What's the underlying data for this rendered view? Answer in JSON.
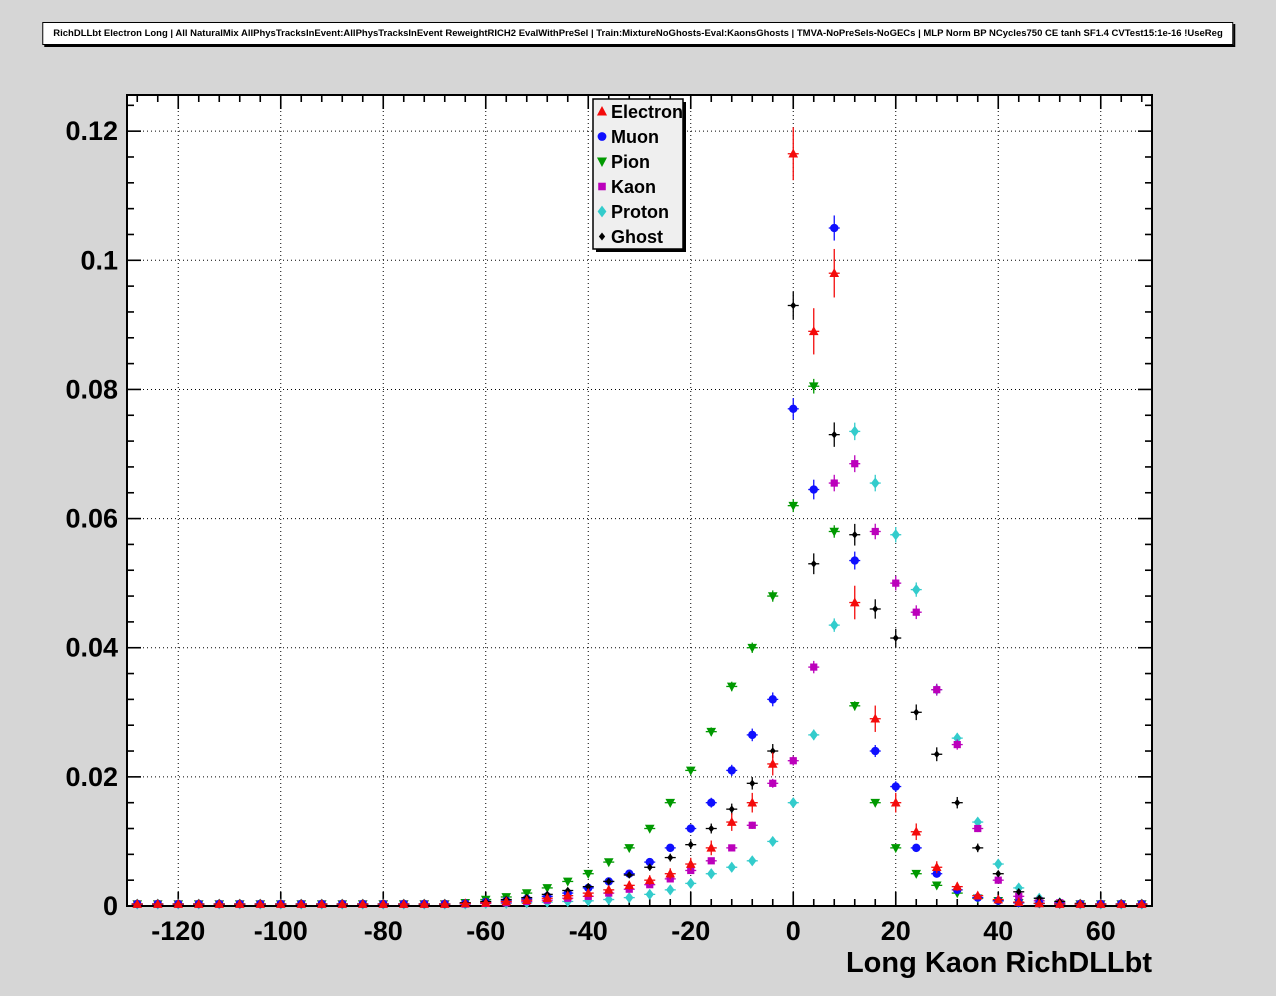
{
  "window": {
    "canvas_bg": "#d6d6d6",
    "frame_bg": "#ffffff",
    "legend_bg": "#efefef",
    "axis_color": "#000000"
  },
  "title": {
    "text": "RichDLLbt Electron Long | All NaturalMix AllPhysTracksInEvent:AllPhysTracksInEvent ReweightRICH2 EvalWithPreSel | Train:MixtureNoGhosts-Eval:KaonsGhosts | TMVA-NoPreSels-NoGECs | MLP Norm BP NCycles750 CE tanh SF1.4 CVTest15:1e-16 !UseReg"
  },
  "chart_data": {
    "type": "scatter",
    "title": "RichDLLbt Electron Long | All NaturalMix AllPhysTracksInEvent:AllPhysTracksInEvent ReweightRICH2 EvalWithPreSel | Train:MixtureNoGhosts-Eval:KaonsGhosts | TMVA-NoPreSels-NoGECs | MLP Norm BP NCycles750 CE tanh SF1.4 CVTest15:1e-16 !UseReg",
    "xlabel": "Long Kaon RichDLLbt",
    "ylabel": "",
    "xlim": [
      -130,
      70
    ],
    "ylim": [
      0,
      0.1256
    ],
    "grid": "dotted",
    "legend_position": "top-center",
    "x_ticks": [
      -120,
      -100,
      -80,
      -60,
      -40,
      -20,
      0,
      20,
      40,
      60
    ],
    "x_tick_labels": [
      "-120",
      "-100",
      "-80",
      "-60",
      "-40",
      "-20",
      "0",
      "20",
      "40",
      "60"
    ],
    "y_ticks": [
      0,
      0.02,
      0.04,
      0.06,
      0.08,
      0.1,
      0.12
    ],
    "y_tick_labels": [
      "0",
      "0.02",
      "0.04",
      "0.06",
      "0.08",
      "0.1",
      "0.12"
    ],
    "x": [
      -128,
      -124,
      -120,
      -116,
      -112,
      -108,
      -104,
      -100,
      -96,
      -92,
      -88,
      -84,
      -80,
      -76,
      -72,
      -68,
      -64,
      -60,
      -56,
      -52,
      -48,
      -44,
      -40,
      -36,
      -32,
      -28,
      -24,
      -20,
      -16,
      -12,
      -8,
      -4,
      0,
      4,
      8,
      12,
      16,
      20,
      24,
      28,
      32,
      36,
      40,
      44,
      48,
      52,
      56,
      60,
      64,
      68
    ],
    "series": [
      {
        "name": "Electron",
        "color": "#f40b0b",
        "marker": "triangle-up",
        "err_scale": 0.012,
        "values": [
          0.0003,
          0.0003,
          0.0003,
          0.0003,
          0.0003,
          0.0003,
          0.0003,
          0.0003,
          0.0003,
          0.0003,
          0.0003,
          0.0003,
          0.0003,
          0.0003,
          0.0003,
          0.0003,
          0.0004,
          0.0005,
          0.0007,
          0.0009,
          0.0012,
          0.0016,
          0.002,
          0.0025,
          0.0032,
          0.004,
          0.005,
          0.0065,
          0.009,
          0.013,
          0.016,
          0.022,
          0.1165,
          0.089,
          0.098,
          0.047,
          0.029,
          0.016,
          0.0115,
          0.006,
          0.003,
          0.0016,
          0.001,
          0.0006,
          0.0004,
          0.0003,
          0.0003,
          0.0003,
          0.0003,
          0.0003
        ]
      },
      {
        "name": "Muon",
        "color": "#0f0fff",
        "marker": "circle",
        "err_scale": 0.006,
        "values": [
          0.0003,
          0.0003,
          0.0003,
          0.0003,
          0.0003,
          0.0003,
          0.0003,
          0.0003,
          0.0003,
          0.0003,
          0.0003,
          0.0003,
          0.0003,
          0.0003,
          0.0003,
          0.0003,
          0.0004,
          0.0006,
          0.0008,
          0.0011,
          0.0015,
          0.002,
          0.0028,
          0.0038,
          0.005,
          0.0068,
          0.009,
          0.012,
          0.016,
          0.021,
          0.0265,
          0.032,
          0.077,
          0.0645,
          0.105,
          0.0535,
          0.024,
          0.0185,
          0.009,
          0.005,
          0.0025,
          0.0013,
          0.0008,
          0.0005,
          0.0004,
          0.0003,
          0.0003,
          0.0003,
          0.0003,
          0.0003
        ]
      },
      {
        "name": "Pion",
        "color": "#009900",
        "marker": "triangle-down",
        "err_scale": 0.004,
        "values": [
          0.0003,
          0.0003,
          0.0003,
          0.0003,
          0.0003,
          0.0003,
          0.0003,
          0.0003,
          0.0003,
          0.0003,
          0.0003,
          0.0003,
          0.0003,
          0.0003,
          0.0003,
          0.0003,
          0.0005,
          0.001,
          0.0014,
          0.002,
          0.0028,
          0.0038,
          0.005,
          0.0068,
          0.009,
          0.012,
          0.016,
          0.021,
          0.027,
          0.034,
          0.04,
          0.048,
          0.062,
          0.0805,
          0.058,
          0.031,
          0.016,
          0.009,
          0.005,
          0.0032,
          0.002,
          0.0012,
          0.0008,
          0.0005,
          0.0004,
          0.0003,
          0.0003,
          0.0003,
          0.0003,
          0.0003
        ]
      },
      {
        "name": "Kaon",
        "color": "#bb00bb",
        "marker": "square",
        "err_scale": 0.005,
        "values": [
          0.0003,
          0.0003,
          0.0003,
          0.0003,
          0.0003,
          0.0003,
          0.0003,
          0.0003,
          0.0003,
          0.0003,
          0.0003,
          0.0003,
          0.0003,
          0.0003,
          0.0003,
          0.0003,
          0.0003,
          0.0004,
          0.0005,
          0.0007,
          0.0009,
          0.0012,
          0.0015,
          0.002,
          0.0026,
          0.0033,
          0.0042,
          0.0055,
          0.007,
          0.009,
          0.0125,
          0.019,
          0.0225,
          0.037,
          0.0655,
          0.0685,
          0.058,
          0.05,
          0.0455,
          0.0335,
          0.025,
          0.012,
          0.004,
          0.0015,
          0.0008,
          0.0005,
          0.0003,
          0.0003,
          0.0003,
          0.0003
        ]
      },
      {
        "name": "Proton",
        "color": "#33cccc",
        "marker": "diamond",
        "err_scale": 0.005,
        "values": [
          0.0003,
          0.0003,
          0.0003,
          0.0003,
          0.0003,
          0.0003,
          0.0003,
          0.0003,
          0.0003,
          0.0003,
          0.0003,
          0.0003,
          0.0003,
          0.0003,
          0.0003,
          0.0003,
          0.0003,
          0.0004,
          0.0004,
          0.0005,
          0.0006,
          0.0007,
          0.0008,
          0.001,
          0.0013,
          0.0018,
          0.0025,
          0.0035,
          0.005,
          0.006,
          0.007,
          0.01,
          0.016,
          0.0265,
          0.0435,
          0.0735,
          0.0655,
          0.0575,
          0.049,
          0.0335,
          0.026,
          0.013,
          0.0065,
          0.0028,
          0.0012,
          0.0005,
          0.0003,
          0.0003,
          0.0003,
          0.0003
        ]
      },
      {
        "name": "Ghost",
        "color": "#000000",
        "marker": "small-diamond",
        "err_scale": 0.007,
        "values": [
          0.0003,
          0.0003,
          0.0003,
          0.0003,
          0.0003,
          0.0003,
          0.0003,
          0.0003,
          0.0003,
          0.0003,
          0.0003,
          0.0003,
          0.0003,
          0.0003,
          0.0003,
          0.0003,
          0.0005,
          0.0007,
          0.001,
          0.0013,
          0.0018,
          0.0024,
          0.003,
          0.0038,
          0.0048,
          0.006,
          0.0075,
          0.0095,
          0.012,
          0.015,
          0.019,
          0.024,
          0.093,
          0.053,
          0.073,
          0.0575,
          0.046,
          0.0415,
          0.03,
          0.0235,
          0.016,
          0.009,
          0.005,
          0.0022,
          0.0012,
          0.0007,
          0.0004,
          0.0003,
          0.0003,
          0.0003
        ]
      }
    ]
  }
}
